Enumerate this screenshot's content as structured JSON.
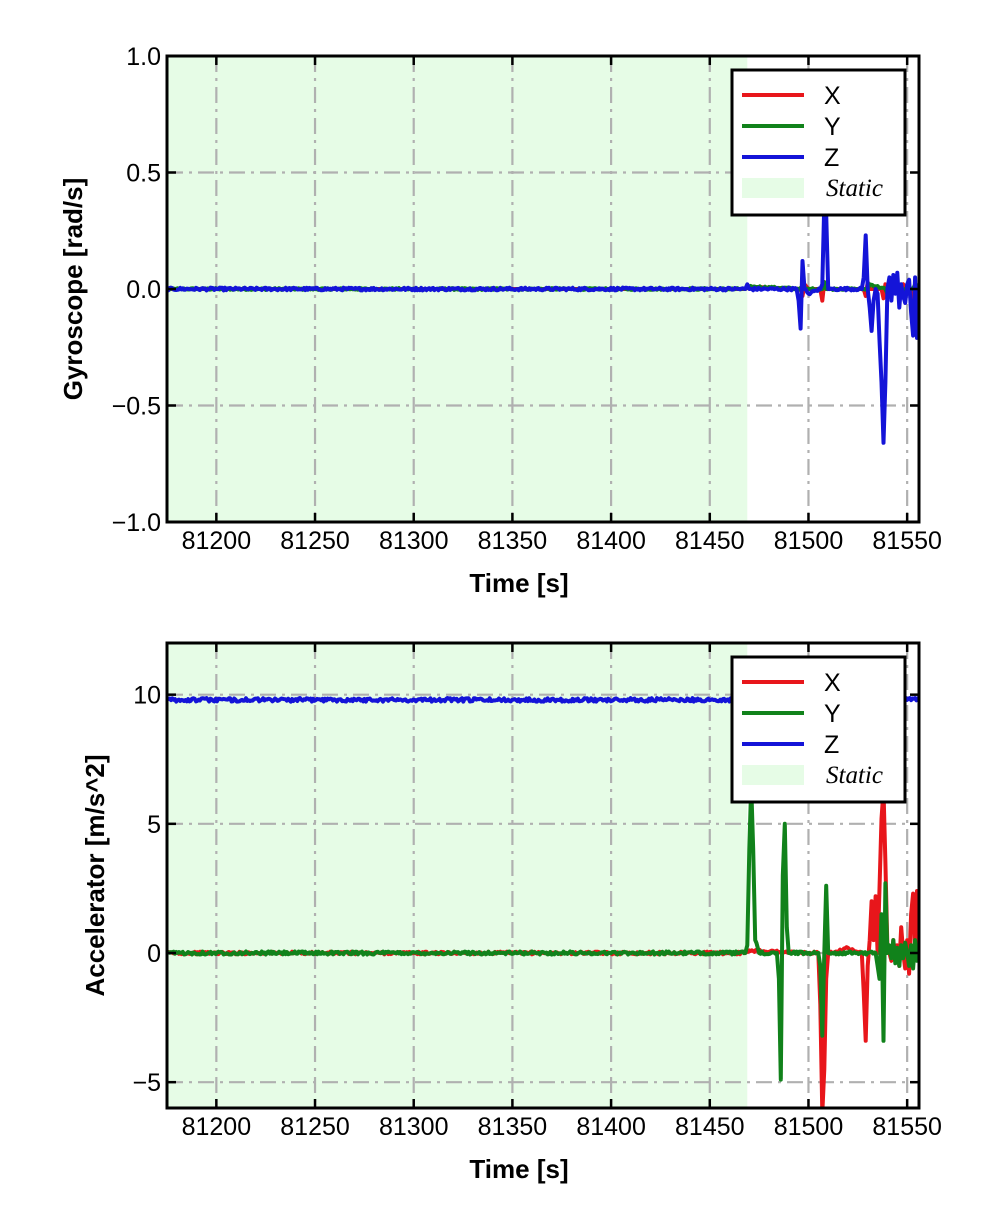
{
  "chart_data": [
    {
      "type": "line",
      "title": "",
      "xlabel": "Time [s]",
      "ylabel": "Gyroscope [rad/s]",
      "xlim": [
        81175,
        81556
      ],
      "ylim": [
        -1.0,
        1.0
      ],
      "x_ticks": [
        81200,
        81250,
        81300,
        81350,
        81400,
        81450,
        81500,
        81550
      ],
      "x_tick_labels": [
        "81200",
        "81250",
        "81300",
        "81350",
        "81400",
        "81450",
        "81500",
        "81550"
      ],
      "y_ticks": [
        -1.0,
        -0.5,
        0.0,
        0.5,
        1.0
      ],
      "y_tick_labels": [
        "−1.0",
        "−0.5",
        "0.0",
        "0.5",
        "1.0"
      ],
      "grid": true,
      "legend_position": "top-right",
      "static_span": [
        81175,
        81469
      ],
      "legend": {
        "x": "X",
        "y": "Y",
        "z": "Z",
        "static": "Static"
      },
      "series": [
        {
          "name": "X",
          "color": "#e8161b",
          "x": [
            81175,
            81468,
            81470,
            81496,
            81497,
            81498,
            81500,
            81506,
            81507,
            81508,
            81509,
            81512,
            81528,
            81529,
            81530,
            81531,
            81533,
            81537,
            81538,
            81539,
            81540,
            81543,
            81546,
            81548,
            81550,
            81552,
            81553,
            81554,
            81556
          ],
          "y": [
            0.0,
            0.0,
            0.01,
            0.0,
            -0.03,
            0.02,
            0.0,
            0.0,
            -0.05,
            0.03,
            0.0,
            0.0,
            0.0,
            -0.03,
            0.03,
            0.0,
            0.0,
            0.0,
            -0.04,
            0.02,
            0.0,
            0.01,
            0.0,
            0.02,
            0.0,
            0.0,
            -0.04,
            0.02,
            0.0
          ]
        },
        {
          "name": "Y",
          "color": "#11821b",
          "x": [
            81175,
            81468,
            81470,
            81500,
            81507,
            81508,
            81509,
            81530,
            81531,
            81539,
            81540,
            81550,
            81553,
            81554,
            81556
          ],
          "y": [
            0.0,
            0.0,
            0.01,
            0.0,
            0.0,
            0.03,
            0.0,
            0.0,
            0.02,
            0.0,
            -0.02,
            0.0,
            0.0,
            0.02,
            0.0
          ],
          "noise": 0.004
        },
        {
          "name": "Z",
          "color": "#1414d8",
          "x": [
            81175,
            81468,
            81469,
            81470,
            81494,
            81495,
            81496,
            81497,
            81498,
            81500,
            81506,
            81507,
            81508,
            81509,
            81510,
            81512,
            81517,
            81527,
            81528,
            81529,
            81530,
            81531,
            81532,
            81533,
            81534,
            81535,
            81536,
            81537,
            81538,
            81539,
            81540,
            81541,
            81542,
            81543,
            81544,
            81545,
            81546,
            81547,
            81548,
            81549,
            81550,
            81551,
            81552,
            81553,
            81554,
            81555,
            81556
          ],
          "y": [
            0.0,
            0.0,
            0.02,
            0.0,
            0.0,
            -0.05,
            -0.17,
            0.12,
            0.0,
            -0.02,
            0.0,
            0.02,
            0.37,
            0.32,
            0.0,
            0.0,
            0.0,
            0.0,
            0.05,
            0.23,
            0.0,
            -0.08,
            -0.18,
            -0.05,
            0.0,
            -0.02,
            -0.22,
            -0.4,
            -0.66,
            -0.4,
            0.0,
            0.05,
            -0.05,
            0.06,
            -0.02,
            0.07,
            -0.08,
            0.02,
            -0.03,
            -0.06,
            0.02,
            0.04,
            -0.1,
            -0.2,
            0.05,
            -0.21,
            0.0
          ],
          "noise": 0.006
        }
      ]
    },
    {
      "type": "line",
      "title": "",
      "xlabel": "Time [s]",
      "ylabel": "Accelerator [m/s^2]",
      "xlim": [
        81175,
        81556
      ],
      "ylim": [
        -6.0,
        12.0
      ],
      "x_ticks": [
        81200,
        81250,
        81300,
        81350,
        81400,
        81450,
        81500,
        81550
      ],
      "x_tick_labels": [
        "81200",
        "81250",
        "81300",
        "81350",
        "81400",
        "81450",
        "81500",
        "81550"
      ],
      "y_ticks": [
        -5,
        0,
        5,
        10
      ],
      "y_tick_labels": [
        "−5",
        "0",
        "5",
        "10"
      ],
      "grid": true,
      "legend_position": "top-right",
      "static_span": [
        81175,
        81469
      ],
      "legend": {
        "x": "X",
        "y": "Y",
        "z": "Z",
        "static": "Static"
      },
      "series": [
        {
          "name": "X",
          "color": "#e8161b",
          "x": [
            81175,
            81468,
            81470,
            81500,
            81505,
            81506,
            81507,
            81508,
            81509,
            81510,
            81512,
            81520,
            81525,
            81527,
            81528,
            81529,
            81530,
            81531,
            81532,
            81533,
            81534,
            81535,
            81536,
            81537,
            81538,
            81539,
            81540,
            81541,
            81542,
            81543,
            81544,
            81545,
            81546,
            81547,
            81548,
            81549,
            81550,
            81551,
            81552,
            81553,
            81554,
            81555,
            81556
          ],
          "y": [
            0.0,
            0.0,
            0.1,
            0.0,
            0.0,
            -2.0,
            -6.2,
            -4.5,
            -1.0,
            0.0,
            0.0,
            0.2,
            0.0,
            0.0,
            -1.5,
            -3.4,
            -0.5,
            0.5,
            2.0,
            0.5,
            2.2,
            0.0,
            2.5,
            5.2,
            6.3,
            3.5,
            0.2,
            0.0,
            -0.3,
            0.5,
            -0.2,
            0.3,
            -0.5,
            1.0,
            0.0,
            -0.6,
            0.5,
            -0.8,
            1.5,
            2.3,
            0.0,
            2.4,
            0.0
          ],
          "noise": 0.05
        },
        {
          "name": "Y",
          "color": "#11821b",
          "x": [
            81175,
            81468,
            81469,
            81470,
            81471,
            81472,
            81473,
            81475,
            81484,
            81485,
            81486,
            81487,
            81488,
            81489,
            81490,
            81492,
            81505,
            81506,
            81507,
            81508,
            81509,
            81510,
            81512,
            81520,
            81530,
            81534,
            81535,
            81536,
            81537,
            81538,
            81539,
            81540,
            81541,
            81542,
            81543,
            81544,
            81545,
            81546,
            81547,
            81548,
            81549,
            81550,
            81551,
            81552,
            81553,
            81554,
            81555,
            81556
          ],
          "y": [
            0.0,
            0.0,
            0.3,
            4.0,
            6.5,
            4.0,
            0.5,
            0.0,
            0.0,
            -1.0,
            -4.9,
            3.0,
            5.0,
            1.0,
            0.0,
            0.0,
            0.0,
            -0.5,
            -3.2,
            0.0,
            2.6,
            0.0,
            0.0,
            0.0,
            0.0,
            0.0,
            -0.5,
            -1.0,
            1.5,
            -3.4,
            2.7,
            0.0,
            0.3,
            -0.2,
            0.5,
            -0.4,
            0.2,
            -0.5,
            0.3,
            -0.2,
            0.4,
            0.0,
            -0.5,
            0.3,
            -0.6,
            0.5,
            -0.3,
            0.0
          ],
          "noise": 0.06
        },
        {
          "name": "Z",
          "color": "#1414d8",
          "x": [
            81175,
            81556
          ],
          "y": [
            9.8,
            9.8
          ],
          "noise": 0.07
        }
      ]
    }
  ]
}
